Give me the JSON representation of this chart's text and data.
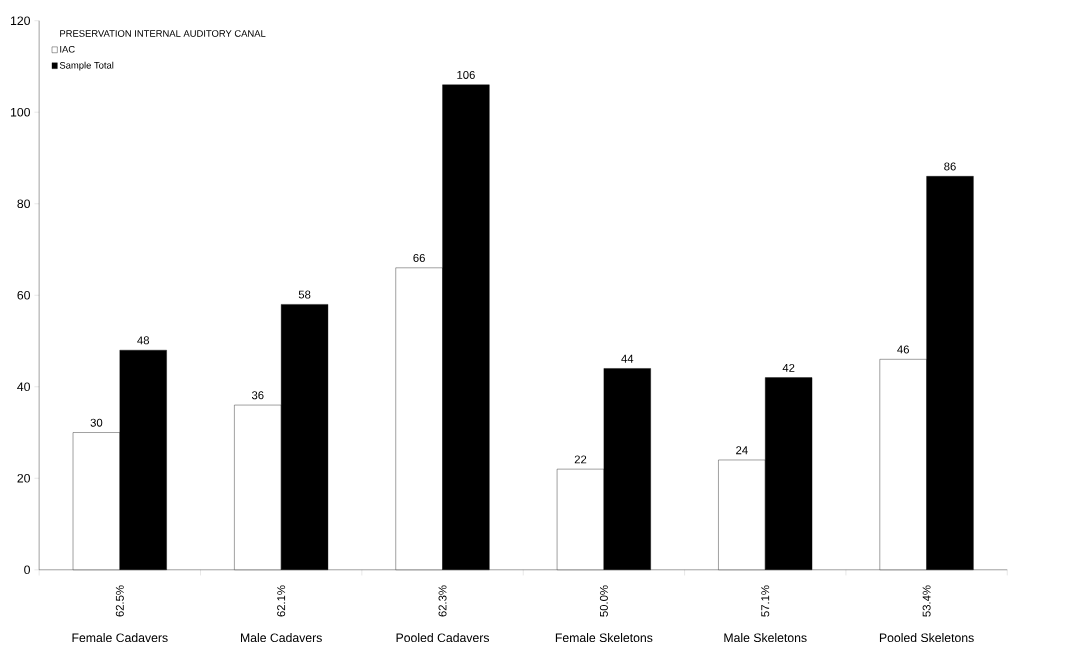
{
  "chart_data": {
    "type": "bar",
    "legend_title": "PRESERVATION INTERNAL AUDITORY CANAL",
    "categories": [
      "Female Cadavers",
      "Male Cadavers",
      "Pooled Cadavers",
      "Female Skeletons",
      "Male Skeletons",
      "Pooled Skeletons"
    ],
    "series": [
      {
        "name": "IAC",
        "color": "#ffffff",
        "values": [
          30,
          36,
          66,
          22,
          24,
          46
        ]
      },
      {
        "name": "Sample Total",
        "color": "#000000",
        "values": [
          48,
          58,
          106,
          44,
          42,
          86
        ]
      }
    ],
    "ylim": [
      0,
      120
    ],
    "yticks": [
      0,
      20,
      40,
      60,
      80,
      100,
      120
    ],
    "data_labels": true,
    "legend": "top left",
    "annotations": [
      "62.5%",
      "62.1%",
      "62.3%",
      "50.0%",
      "57.1%",
      "53.4%"
    ]
  }
}
